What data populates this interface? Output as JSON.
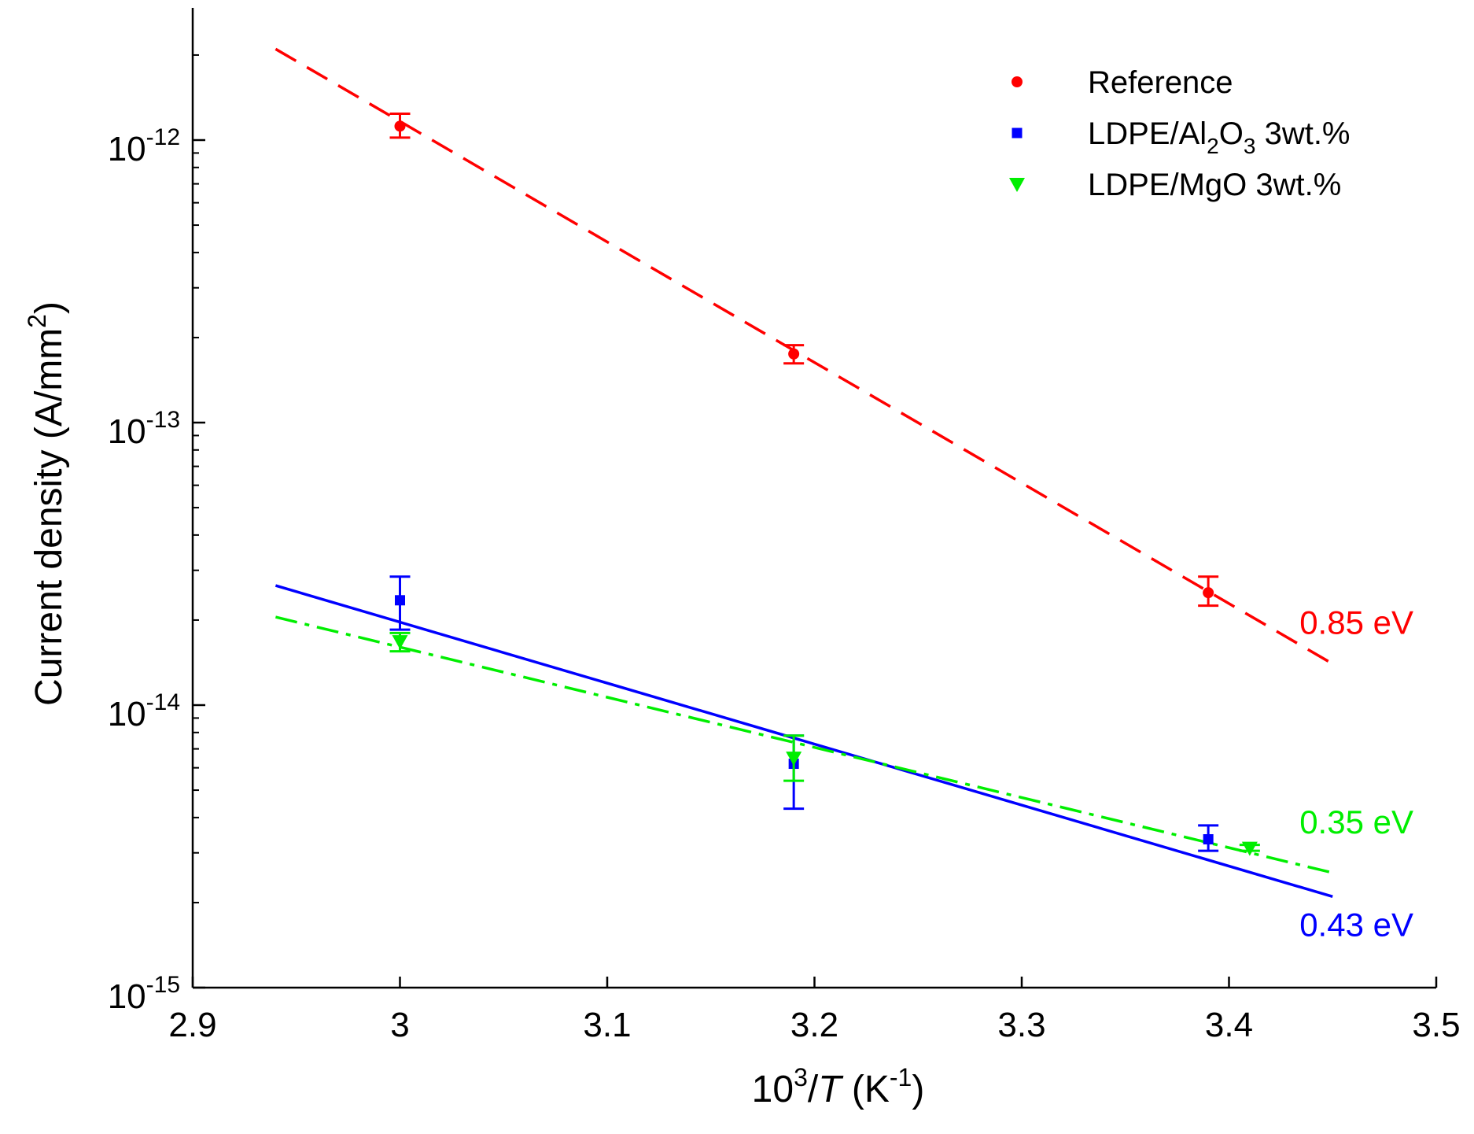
{
  "chart_data": {
    "type": "scatter",
    "title": "",
    "xlabel": {
      "base": "10",
      "sup": "3",
      "slash": "/",
      "var": "T",
      "unit_open": " (K",
      "unit_sup": "-1",
      "unit_close": ")"
    },
    "ylabel": {
      "main": "Current density (A/mm",
      "sup": "2",
      "close": ")"
    },
    "x_scale": "linear",
    "y_scale": "log",
    "xlim": [
      2.9,
      3.5
    ],
    "ylim": [
      1e-15,
      3.5e-12
    ],
    "x_ticks": [
      2.9,
      3.0,
      3.1,
      3.2,
      3.3,
      3.4,
      3.5
    ],
    "x_tick_labels": [
      "2.9",
      "3",
      "3.1",
      "3.2",
      "3.3",
      "3.4",
      "3.5"
    ],
    "y_ticks": [
      {
        "value": 1e-15,
        "base": "10",
        "exp": "-15"
      },
      {
        "value": 1e-14,
        "base": "10",
        "exp": "-14"
      },
      {
        "value": 1e-13,
        "base": "10",
        "exp": "-13"
      },
      {
        "value": 1e-12,
        "base": "10",
        "exp": "-12"
      }
    ],
    "legend_position": "top-right",
    "series": [
      {
        "name": "Reference",
        "legend": {
          "main": "Reference"
        },
        "color": "#ff0000",
        "marker": "circle",
        "x": [
          3.0,
          3.19,
          3.39
        ],
        "y": [
          1.12e-12,
          1.75e-13,
          2.5e-14
        ],
        "err_low": [
          1.02e-12,
          1.62e-13,
          2.25e-14
        ],
        "err_high": [
          1.24e-12,
          1.88e-13,
          2.85e-14
        ],
        "fit": {
          "x": [
            2.94,
            3.45
          ],
          "y": [
            2.1e-12,
            1.4e-14
          ],
          "style": "dashed"
        },
        "activation_label": "0.85 eV"
      },
      {
        "name": "LDPE/Al2O3 3wt.%",
        "legend": {
          "pre": "LDPE/Al",
          "sub1": "2",
          "mid": "O",
          "sub2": "3",
          "post": " 3wt.%"
        },
        "color": "#0000ff",
        "marker": "square",
        "x": [
          3.0,
          3.19,
          3.39
        ],
        "y": [
          2.35e-14,
          6.2e-15,
          3.35e-15
        ],
        "err_low": [
          1.85e-14,
          4.3e-15,
          3.05e-15
        ],
        "err_high": [
          2.85e-14,
          7.8e-15,
          3.75e-15
        ],
        "fit": {
          "x": [
            2.94,
            3.45
          ],
          "y": [
            2.65e-14,
            2.1e-15
          ],
          "style": "solid"
        },
        "activation_label": "0.43 eV"
      },
      {
        "name": "LDPE/MgO 3wt.%",
        "legend": {
          "main": "LDPE/MgO 3wt.%"
        },
        "color": "#00ee00",
        "marker": "triangle-down",
        "x": [
          3.0,
          3.19,
          3.41
        ],
        "y": [
          1.68e-14,
          6.5e-15,
          3.12e-15
        ],
        "err_low": [
          1.55e-14,
          5.4e-15,
          3.05e-15
        ],
        "err_high": [
          1.8e-14,
          7.8e-15,
          3.2e-15
        ],
        "fit": {
          "x": [
            2.94,
            3.45
          ],
          "y": [
            2.05e-14,
            2.55e-15
          ],
          "style": "dashdot"
        },
        "activation_label": "0.35 eV"
      }
    ]
  }
}
